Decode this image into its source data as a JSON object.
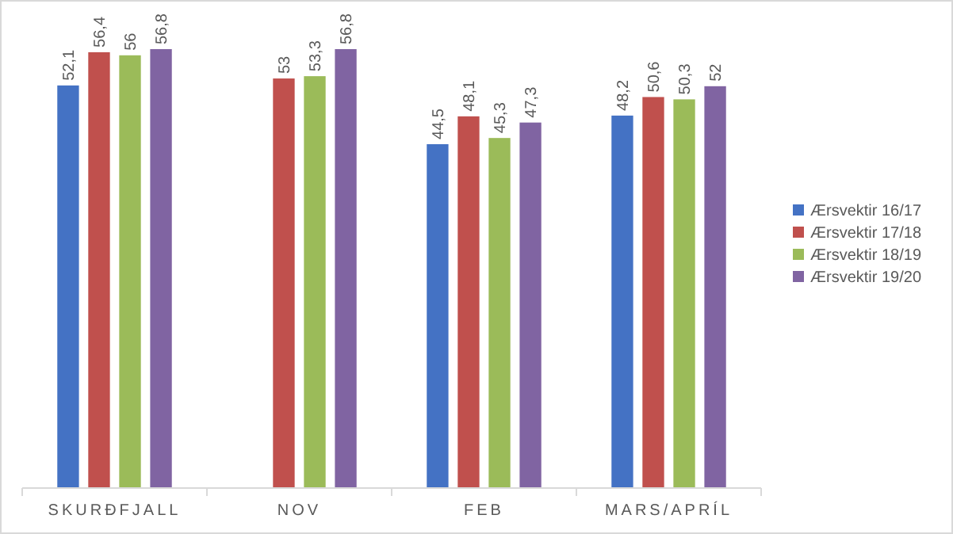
{
  "chart_data": {
    "type": "bar",
    "categories": [
      "SKURÐFJALL",
      "NOV",
      "FEB",
      "MARS/APRÍL"
    ],
    "series": [
      {
        "name": "Ærsvektir 16/17",
        "color": "#4472c4",
        "values": [
          52.1,
          null,
          44.5,
          48.2
        ],
        "value_labels": [
          "52,1",
          null,
          "44,5",
          "48,2"
        ]
      },
      {
        "name": "Ærsvektir 17/18",
        "color": "#c0504d",
        "values": [
          56.4,
          53,
          48.1,
          50.6
        ],
        "value_labels": [
          "56,4",
          "53",
          "48,1",
          "50,6"
        ]
      },
      {
        "name": "Ærsvektir 18/19",
        "color": "#9bbb59",
        "values": [
          56,
          53.3,
          45.3,
          50.3
        ],
        "value_labels": [
          "56",
          "53,3",
          "45,3",
          "50,3"
        ]
      },
      {
        "name": "Ærsvektir 19/20",
        "color": "#8064a2",
        "values": [
          56.8,
          56.8,
          47.3,
          52
        ],
        "value_labels": [
          "56,8",
          "56,8",
          "47,3",
          "52"
        ]
      }
    ],
    "tick_labels": "x",
    "legend": "right"
  }
}
